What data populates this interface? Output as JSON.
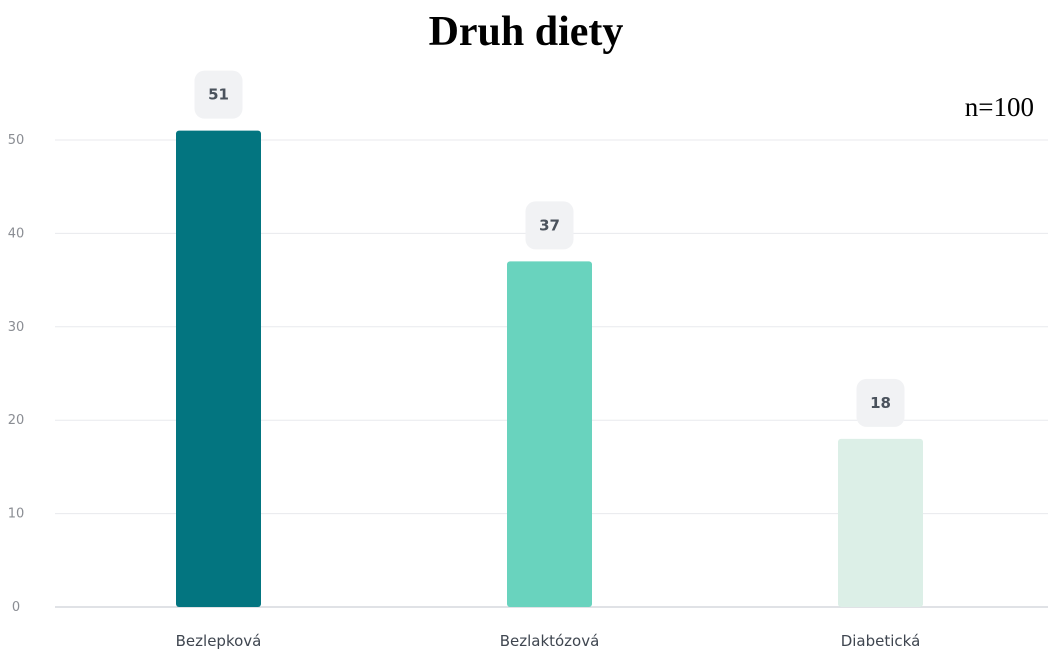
{
  "chart_data": {
    "type": "bar",
    "title": "Druh diety",
    "annotation": "n=100",
    "categories": [
      "Bezlepková",
      "Bezlaktózová",
      "Diabetická"
    ],
    "values": [
      51,
      37,
      18
    ],
    "colors": [
      "#037580",
      "#69d3be",
      "#dcefe7"
    ],
    "ylim": [
      0,
      50
    ],
    "yticks": [
      0,
      10,
      20,
      30,
      40,
      50
    ],
    "grid": true,
    "xlabel": "",
    "ylabel": ""
  }
}
